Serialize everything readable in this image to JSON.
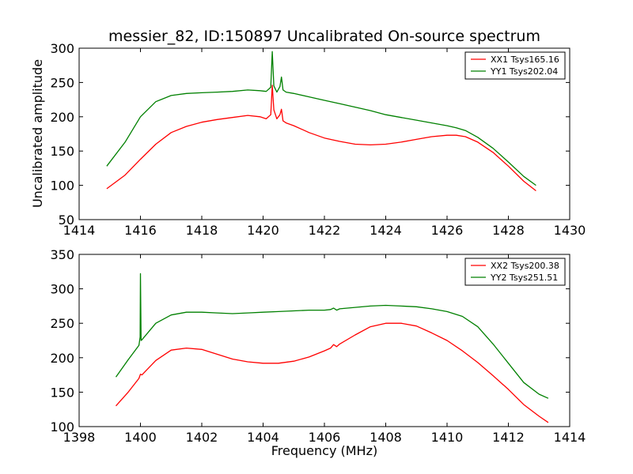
{
  "chart_data": [
    {
      "type": "line",
      "title": "messier_82, ID:150897 Uncalibrated On-source spectrum",
      "xlabel": "",
      "ylabel": "Uncalibrated amplitude",
      "xlim": [
        1414,
        1430
      ],
      "ylim": [
        50,
        300
      ],
      "xticks": [
        1414,
        1416,
        1418,
        1420,
        1422,
        1424,
        1426,
        1428,
        1430
      ],
      "yticks": [
        50,
        100,
        150,
        200,
        250,
        300
      ],
      "legend_position": "top-right",
      "series": [
        {
          "name": "XX1 Tsys165.16",
          "color": "#ff0000",
          "x": [
            1414.9,
            1415.5,
            1416.0,
            1416.5,
            1417.0,
            1417.5,
            1418.0,
            1418.5,
            1419.0,
            1419.5,
            1419.9,
            1420.1,
            1420.25,
            1420.3,
            1420.35,
            1420.45,
            1420.55,
            1420.6,
            1420.65,
            1420.75,
            1421.0,
            1421.5,
            1422.0,
            1422.5,
            1423.0,
            1423.5,
            1424.0,
            1424.5,
            1425.0,
            1425.5,
            1426.0,
            1426.3,
            1426.6,
            1427.0,
            1427.5,
            1428.0,
            1428.5,
            1428.9
          ],
          "values": [
            95,
            115,
            138,
            160,
            177,
            186,
            192,
            196,
            199,
            202,
            200,
            197,
            203,
            246,
            210,
            197,
            203,
            211,
            194,
            191,
            187,
            177,
            169,
            164,
            160,
            159,
            160,
            163,
            167,
            171,
            173,
            173,
            171,
            163,
            148,
            128,
            106,
            92
          ]
        },
        {
          "name": "YY1 Tsys202.04",
          "color": "#008000",
          "x": [
            1414.9,
            1415.5,
            1416.0,
            1416.5,
            1417.0,
            1417.5,
            1418.0,
            1418.5,
            1419.0,
            1419.5,
            1419.9,
            1420.1,
            1420.25,
            1420.3,
            1420.35,
            1420.45,
            1420.55,
            1420.6,
            1420.65,
            1420.75,
            1421.0,
            1421.5,
            1422.0,
            1422.5,
            1423.0,
            1423.5,
            1424.0,
            1424.5,
            1425.0,
            1425.5,
            1426.0,
            1426.3,
            1426.6,
            1427.0,
            1427.5,
            1428.0,
            1428.5,
            1428.9
          ],
          "values": [
            128,
            163,
            200,
            222,
            231,
            234,
            235,
            236,
            237,
            239,
            238,
            237,
            243,
            295,
            245,
            236,
            244,
            258,
            239,
            236,
            234,
            229,
            224,
            219,
            214,
            209,
            203,
            199,
            195,
            191,
            187,
            184,
            180,
            170,
            154,
            134,
            113,
            100
          ]
        }
      ]
    },
    {
      "type": "line",
      "title": "",
      "xlabel": "Frequency (MHz)",
      "ylabel": "",
      "xlim": [
        1398,
        1414
      ],
      "ylim": [
        100,
        350
      ],
      "xticks": [
        1398,
        1400,
        1402,
        1404,
        1406,
        1408,
        1410,
        1412,
        1414
      ],
      "yticks": [
        100,
        150,
        200,
        250,
        300,
        350
      ],
      "legend_position": "top-right",
      "series": [
        {
          "name": "XX2 Tsys200.38",
          "color": "#ff0000",
          "x": [
            1399.2,
            1399.6,
            1399.95,
            1400.0,
            1400.05,
            1400.5,
            1401.0,
            1401.5,
            1402.0,
            1402.5,
            1403.0,
            1403.5,
            1404.0,
            1404.5,
            1405.0,
            1405.5,
            1406.0,
            1406.2,
            1406.3,
            1406.4,
            1406.5,
            1407.0,
            1407.5,
            1408.0,
            1408.5,
            1409.0,
            1409.5,
            1410.0,
            1410.5,
            1411.0,
            1411.5,
            1412.0,
            1412.5,
            1413.0,
            1413.3
          ],
          "values": [
            130,
            150,
            170,
            176,
            175,
            196,
            211,
            214,
            212,
            205,
            198,
            194,
            192,
            192,
            195,
            201,
            210,
            214,
            219,
            216,
            220,
            233,
            245,
            250,
            250,
            246,
            236,
            225,
            210,
            193,
            174,
            154,
            132,
            115,
            106
          ]
        },
        {
          "name": "YY2 Tsys251.51",
          "color": "#008000",
          "x": [
            1399.2,
            1399.6,
            1399.95,
            1399.99,
            1400.0,
            1400.02,
            1400.05,
            1400.5,
            1401.0,
            1401.5,
            1402.0,
            1402.5,
            1403.0,
            1403.5,
            1404.0,
            1404.5,
            1405.0,
            1405.5,
            1406.0,
            1406.2,
            1406.3,
            1406.4,
            1406.5,
            1407.0,
            1407.5,
            1408.0,
            1408.5,
            1409.0,
            1409.5,
            1410.0,
            1410.5,
            1411.0,
            1411.5,
            1412.0,
            1412.5,
            1413.0,
            1413.3
          ],
          "values": [
            172,
            197,
            218,
            230,
            322,
            225,
            226,
            250,
            262,
            266,
            266,
            265,
            264,
            265,
            266,
            267,
            268,
            269,
            269,
            270,
            272,
            269,
            271,
            273,
            275,
            276,
            275,
            274,
            271,
            267,
            260,
            245,
            220,
            192,
            164,
            147,
            141
          ]
        }
      ]
    }
  ]
}
